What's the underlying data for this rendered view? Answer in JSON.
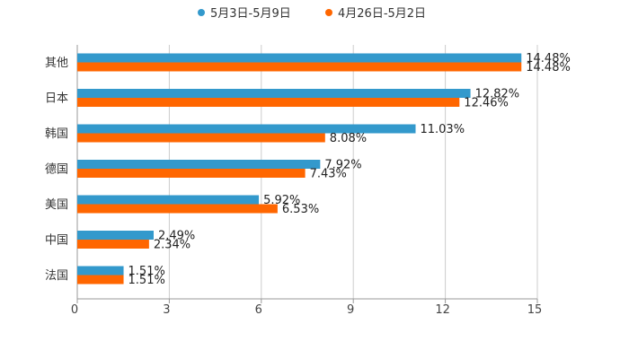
{
  "chart_data": {
    "type": "bar",
    "orientation": "horizontal",
    "categories": [
      "其他",
      "日本",
      "韩国",
      "德国",
      "美国",
      "中国",
      "法国"
    ],
    "series": [
      {
        "name": "5月3日-5月9日",
        "color": "#3399cc",
        "values": [
          14.48,
          12.82,
          11.03,
          7.92,
          5.92,
          2.49,
          1.51
        ],
        "labels": [
          "14.48%",
          "12.82%",
          "11.03%",
          "7.92%",
          "5.92%",
          "2.49%",
          "1.51%"
        ]
      },
      {
        "name": "4月26日-5月2日",
        "color": "#ff6600",
        "values": [
          14.48,
          12.46,
          8.08,
          7.43,
          6.53,
          2.34,
          1.51
        ],
        "labels": [
          "14.48%",
          "12.46%",
          "8.08%",
          "7.43%",
          "6.53%",
          "2.34%",
          "1.51%"
        ]
      }
    ],
    "xlim": [
      0,
      15
    ],
    "xticks": [
      "0",
      "3",
      "6",
      "9",
      "12",
      "15"
    ],
    "grid": true,
    "legend_position": "top-center"
  }
}
